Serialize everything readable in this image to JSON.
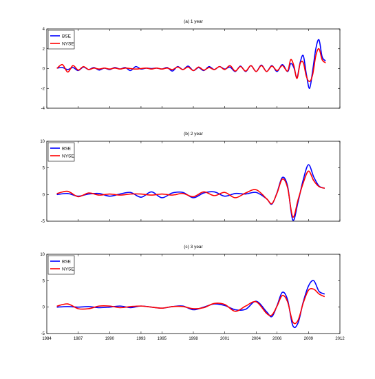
{
  "chart_data": [
    {
      "type": "line",
      "title": "(a) 1 year",
      "xlabel": "",
      "ylabel": "",
      "xlim": [
        1984,
        2012
      ],
      "ylim": [
        -4,
        4
      ],
      "yticks": [
        -4,
        -2,
        0,
        2,
        4
      ],
      "ytick_labels": [
        "-4",
        "-2",
        "0",
        "2",
        "4"
      ],
      "xticks": [],
      "xtick_labels": [],
      "legend_position": "top-left",
      "series": [
        {
          "name": "BSE",
          "color": "#0000ff",
          "x": [
            1985.0,
            1985.5,
            1986.0,
            1986.5,
            1987.0,
            1987.5,
            1988.0,
            1988.5,
            1989.0,
            1989.5,
            1990.0,
            1990.5,
            1991.0,
            1991.5,
            1992.0,
            1992.5,
            1993.0,
            1993.5,
            1994.0,
            1994.5,
            1995.0,
            1995.5,
            1996.0,
            1996.5,
            1997.0,
            1997.5,
            1998.0,
            1998.5,
            1999.0,
            1999.5,
            2000.0,
            2000.5,
            2001.0,
            2001.5,
            2002.0,
            2002.5,
            2003.0,
            2003.5,
            2004.0,
            2004.5,
            2005.0,
            2005.5,
            2006.0,
            2006.5,
            2007.0,
            2007.3,
            2007.6,
            2007.9,
            2008.2,
            2008.5,
            2008.8,
            2009.1,
            2009.4,
            2009.7,
            2010.0,
            2010.3,
            2010.6
          ],
          "y": [
            0.05,
            0.1,
            -0.1,
            0.1,
            -0.2,
            0.15,
            -0.1,
            0.1,
            -0.15,
            0.05,
            -0.1,
            0.1,
            -0.05,
            0.1,
            -0.2,
            0.2,
            -0.05,
            0.05,
            0.0,
            0.05,
            -0.05,
            0.1,
            -0.25,
            0.2,
            -0.1,
            0.25,
            -0.2,
            0.1,
            -0.2,
            0.2,
            -0.1,
            0.2,
            -0.05,
            0.15,
            -0.3,
            0.25,
            -0.3,
            0.3,
            -0.3,
            0.35,
            -0.3,
            0.3,
            -0.3,
            0.4,
            -0.3,
            0.5,
            0.1,
            -0.9,
            0.6,
            1.3,
            -0.6,
            -2.0,
            -0.2,
            2.0,
            2.9,
            1.2,
            0.8
          ]
        },
        {
          "name": "NYSE",
          "color": "#ff0000",
          "x": [
            1985.0,
            1985.5,
            1986.0,
            1986.5,
            1987.0,
            1987.5,
            1988.0,
            1988.5,
            1989.0,
            1989.5,
            1990.0,
            1990.5,
            1991.0,
            1991.5,
            1992.0,
            1992.5,
            1993.0,
            1993.5,
            1994.0,
            1994.5,
            1995.0,
            1995.5,
            1996.0,
            1996.5,
            1997.0,
            1997.5,
            1998.0,
            1998.5,
            1999.0,
            1999.5,
            2000.0,
            2000.5,
            2001.0,
            2001.5,
            2002.0,
            2002.5,
            2003.0,
            2003.5,
            2004.0,
            2004.5,
            2005.0,
            2005.5,
            2006.0,
            2006.5,
            2007.0,
            2007.3,
            2007.6,
            2007.9,
            2008.2,
            2008.5,
            2008.8,
            2009.1,
            2009.4,
            2009.7,
            2010.0,
            2010.3,
            2010.6
          ],
          "y": [
            0.05,
            0.4,
            -0.35,
            0.3,
            -0.15,
            0.2,
            -0.1,
            0.05,
            -0.05,
            0.05,
            -0.05,
            0.05,
            -0.05,
            0.05,
            0.0,
            -0.05,
            0.0,
            0.05,
            -0.05,
            0.05,
            -0.05,
            0.05,
            -0.1,
            0.15,
            -0.1,
            0.15,
            -0.2,
            0.15,
            -0.15,
            0.1,
            -0.1,
            0.2,
            -0.1,
            0.3,
            -0.25,
            0.2,
            -0.25,
            0.3,
            -0.3,
            0.3,
            -0.3,
            0.25,
            -0.2,
            0.3,
            -0.25,
            0.9,
            0.3,
            -1.0,
            0.5,
            0.6,
            -0.8,
            -1.3,
            -0.6,
            1.3,
            2.0,
            0.9,
            0.6
          ]
        }
      ]
    },
    {
      "type": "line",
      "title": "(b) 2 year",
      "xlabel": "",
      "ylabel": "",
      "xlim": [
        1984,
        2012
      ],
      "ylim": [
        -5,
        10
      ],
      "yticks": [
        -5,
        0,
        5,
        10
      ],
      "ytick_labels": [
        "-5",
        "0",
        "5",
        "10"
      ],
      "xticks": [],
      "xtick_labels": [],
      "legend_position": "top-left",
      "series": [
        {
          "name": "BSE",
          "color": "#0000ff",
          "x": [
            1985.0,
            1986.0,
            1987.0,
            1988.0,
            1989.0,
            1990.0,
            1991.0,
            1992.0,
            1993.0,
            1994.0,
            1995.0,
            1996.0,
            1997.0,
            1998.0,
            1999.0,
            2000.0,
            2001.0,
            2002.0,
            2003.0,
            2004.0,
            2005.0,
            2005.5,
            2006.0,
            2006.5,
            2007.0,
            2007.5,
            2008.0,
            2008.5,
            2009.0,
            2009.5,
            2010.0,
            2010.5
          ],
          "y": [
            0.0,
            0.2,
            -0.3,
            0.1,
            0.2,
            -0.3,
            0.1,
            0.4,
            -0.5,
            0.5,
            -0.6,
            0.3,
            0.4,
            -0.6,
            0.3,
            0.5,
            -0.3,
            0.2,
            0.1,
            0.4,
            -0.8,
            -1.8,
            0.4,
            3.2,
            1.6,
            -4.8,
            -1.4,
            2.8,
            5.6,
            3.3,
            1.6,
            1.2
          ]
        },
        {
          "name": "NYSE",
          "color": "#ff0000",
          "x": [
            1985.0,
            1986.0,
            1987.0,
            1988.0,
            1989.0,
            1990.0,
            1991.0,
            1992.0,
            1993.0,
            1994.0,
            1995.0,
            1996.0,
            1997.0,
            1998.0,
            1999.0,
            2000.0,
            2001.0,
            2002.0,
            2003.0,
            2004.0,
            2005.0,
            2005.5,
            2006.0,
            2006.5,
            2007.0,
            2007.5,
            2008.0,
            2008.5,
            2009.0,
            2009.5,
            2010.0,
            2010.5
          ],
          "y": [
            0.2,
            0.6,
            -0.4,
            0.3,
            -0.1,
            0.1,
            -0.1,
            0.1,
            0.1,
            -0.1,
            0.1,
            -0.1,
            0.2,
            -0.4,
            0.5,
            -0.2,
            0.4,
            -0.6,
            0.3,
            0.9,
            -0.8,
            -1.7,
            0.3,
            2.9,
            1.3,
            -4.2,
            -1.0,
            2.2,
            4.4,
            2.6,
            1.5,
            1.2
          ]
        }
      ]
    },
    {
      "type": "line",
      "title": "(c) 3 year",
      "xlabel": "",
      "ylabel": "",
      "xlim": [
        1984,
        2012
      ],
      "ylim": [
        -5,
        10
      ],
      "yticks": [
        -5,
        0,
        5,
        10
      ],
      "ytick_labels": [
        "-5",
        "0",
        "5",
        "10"
      ],
      "xticks": [
        1984,
        1987,
        1990,
        1993,
        1995,
        1998,
        2001,
        2004,
        2006,
        2009,
        2012
      ],
      "xtick_labels": [
        "1984",
        "1987",
        "1990",
        "1993",
        "1995",
        "1998",
        "2001",
        "2004",
        "2006",
        "2009",
        "2012"
      ],
      "legend_position": "top-left",
      "series": [
        {
          "name": "BSE",
          "color": "#0000ff",
          "x": [
            1985.0,
            1986.0,
            1987.0,
            1988.0,
            1989.0,
            1990.0,
            1991.0,
            1992.0,
            1993.0,
            1994.0,
            1995.0,
            1996.0,
            1997.0,
            1998.0,
            1999.0,
            2000.0,
            2001.0,
            2002.0,
            2003.0,
            2004.0,
            2005.0,
            2005.5,
            2006.0,
            2006.5,
            2007.0,
            2007.5,
            2008.0,
            2008.5,
            2009.0,
            2009.5,
            2010.0,
            2010.5
          ],
          "y": [
            0.0,
            0.1,
            0.0,
            0.1,
            -0.1,
            0.0,
            0.2,
            -0.1,
            0.2,
            0.0,
            -0.2,
            0.1,
            0.2,
            -0.5,
            0.0,
            0.6,
            0.3,
            -0.5,
            -0.4,
            1.1,
            -0.9,
            -1.8,
            0.3,
            2.8,
            1.4,
            -3.5,
            -3.0,
            1.0,
            4.0,
            5.0,
            3.0,
            2.5
          ]
        },
        {
          "name": "NYSE",
          "color": "#ff0000",
          "x": [
            1985.0,
            1986.0,
            1987.0,
            1988.0,
            1989.0,
            1990.0,
            1991.0,
            1992.0,
            1993.0,
            1994.0,
            1995.0,
            1996.0,
            1997.0,
            1998.0,
            1999.0,
            2000.0,
            2001.0,
            2002.0,
            2003.0,
            2004.0,
            2005.0,
            2005.5,
            2006.0,
            2006.5,
            2007.0,
            2007.5,
            2008.0,
            2008.5,
            2009.0,
            2009.5,
            2010.0,
            2010.5
          ],
          "y": [
            0.2,
            0.6,
            -0.3,
            -0.3,
            0.2,
            0.2,
            -0.1,
            0.1,
            0.2,
            0.0,
            -0.2,
            0.1,
            0.1,
            -0.3,
            -0.1,
            0.7,
            0.5,
            -0.8,
            0.2,
            1.0,
            -1.2,
            -1.5,
            0.2,
            2.2,
            1.0,
            -2.8,
            -2.5,
            0.8,
            3.2,
            3.4,
            2.5,
            2.0
          ]
        }
      ]
    }
  ]
}
